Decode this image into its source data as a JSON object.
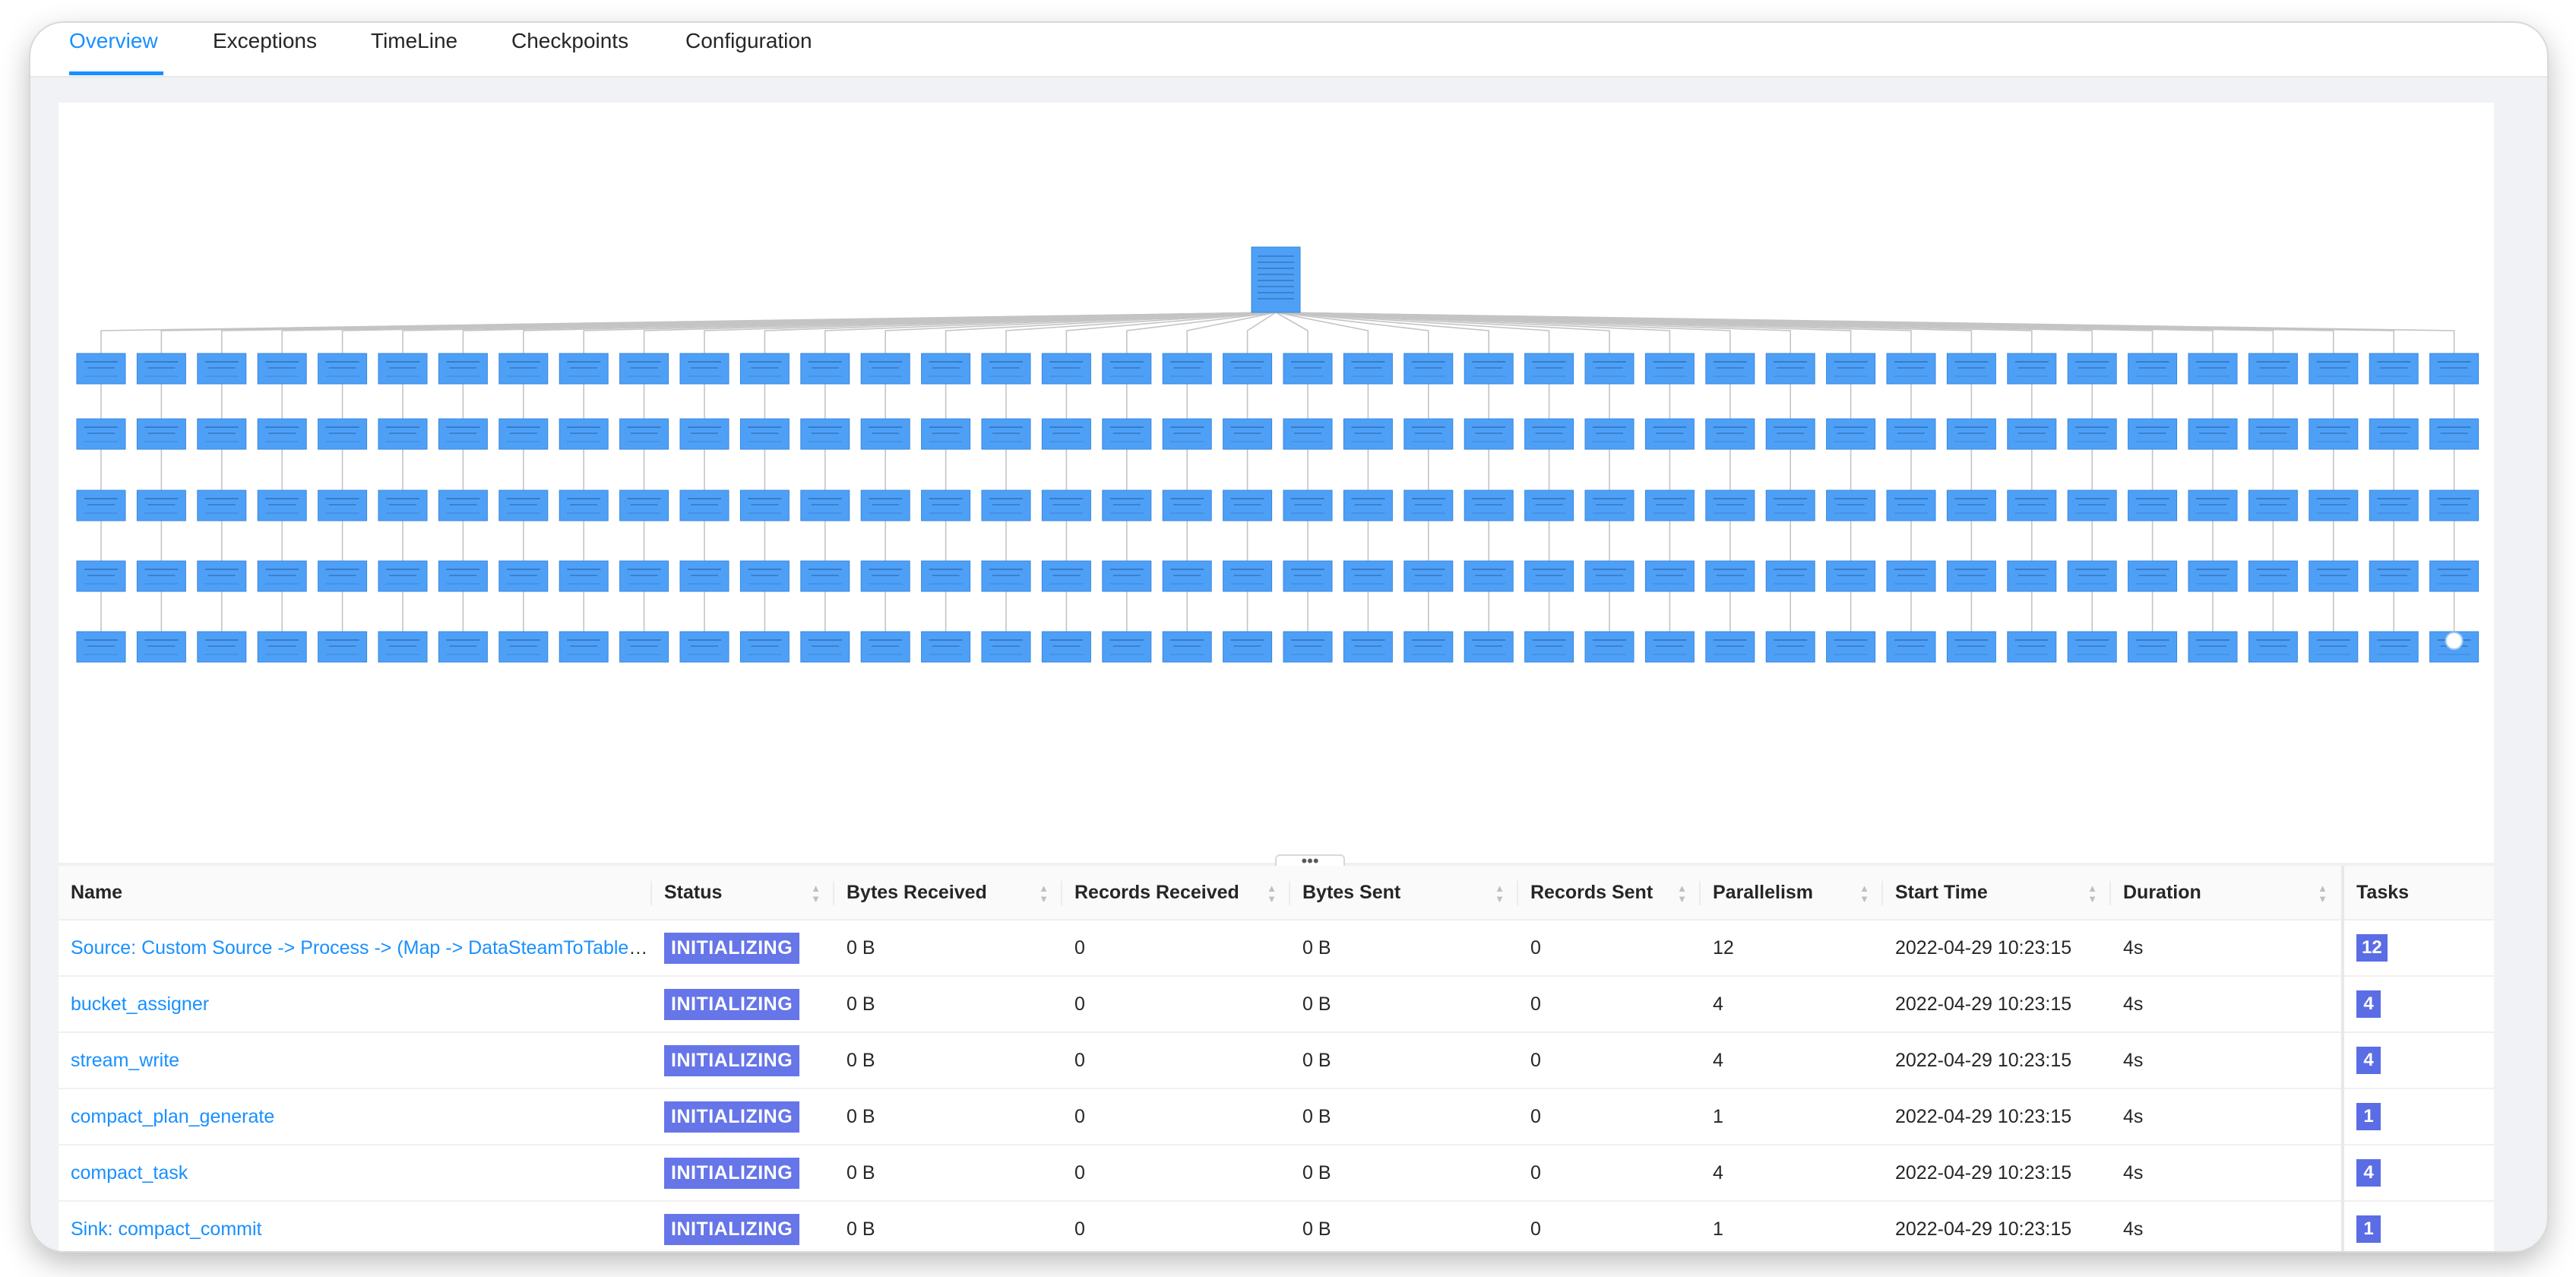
{
  "tabs": [
    {
      "label": "Overview",
      "active": true
    },
    {
      "label": "Exceptions",
      "active": false
    },
    {
      "label": "TimeLine",
      "active": false
    },
    {
      "label": "Checkpoints",
      "active": false
    },
    {
      "label": "Configuration",
      "active": false
    }
  ],
  "graph": {
    "node_color": "#4ea0f7",
    "edge_color": "#c4c4c4",
    "columns": 40,
    "rows": 5,
    "root_count": 1,
    "handle_icon": "drag-handle-icon"
  },
  "splitter": {
    "handle": "•••"
  },
  "table": {
    "headers": {
      "name": "Name",
      "status": "Status",
      "bytes_received": "Bytes Received",
      "records_received": "Records Received",
      "bytes_sent": "Bytes Sent",
      "records_sent": "Records Sent",
      "parallelism": "Parallelism",
      "start_time": "Start Time",
      "duration": "Duration",
      "tasks": "Tasks"
    },
    "rows": [
      {
        "name": "Source: Custom Source -> Process -> (Map -> DataSteamToTable(stream=default_catalog.default_database.Unregistered_DataStream_Source_1, type=*com.example*, rowtime=false, watermark=false))",
        "status": "INITIALIZING",
        "bytes_received": "0 B",
        "records_received": "0",
        "bytes_sent": "0 B",
        "records_sent": "0",
        "parallelism": "12",
        "start_time": "2022-04-29 10:23:15",
        "duration": "4s",
        "tasks": "12"
      },
      {
        "name": "bucket_assigner",
        "status": "INITIALIZING",
        "bytes_received": "0 B",
        "records_received": "0",
        "bytes_sent": "0 B",
        "records_sent": "0",
        "parallelism": "4",
        "start_time": "2022-04-29 10:23:15",
        "duration": "4s",
        "tasks": "4"
      },
      {
        "name": "stream_write",
        "status": "INITIALIZING",
        "bytes_received": "0 B",
        "records_received": "0",
        "bytes_sent": "0 B",
        "records_sent": "0",
        "parallelism": "4",
        "start_time": "2022-04-29 10:23:15",
        "duration": "4s",
        "tasks": "4"
      },
      {
        "name": "compact_plan_generate",
        "status": "INITIALIZING",
        "bytes_received": "0 B",
        "records_received": "0",
        "bytes_sent": "0 B",
        "records_sent": "0",
        "parallelism": "1",
        "start_time": "2022-04-29 10:23:15",
        "duration": "4s",
        "tasks": "1"
      },
      {
        "name": "compact_task",
        "status": "INITIALIZING",
        "bytes_received": "0 B",
        "records_received": "0",
        "bytes_sent": "0 B",
        "records_sent": "0",
        "parallelism": "4",
        "start_time": "2022-04-29 10:23:15",
        "duration": "4s",
        "tasks": "4"
      },
      {
        "name": "Sink: compact_commit",
        "status": "INITIALIZING",
        "bytes_received": "0 B",
        "records_received": "0",
        "bytes_sent": "0 B",
        "records_sent": "0",
        "parallelism": "1",
        "start_time": "2022-04-29 10:23:15",
        "duration": "4s",
        "tasks": "1"
      }
    ]
  }
}
